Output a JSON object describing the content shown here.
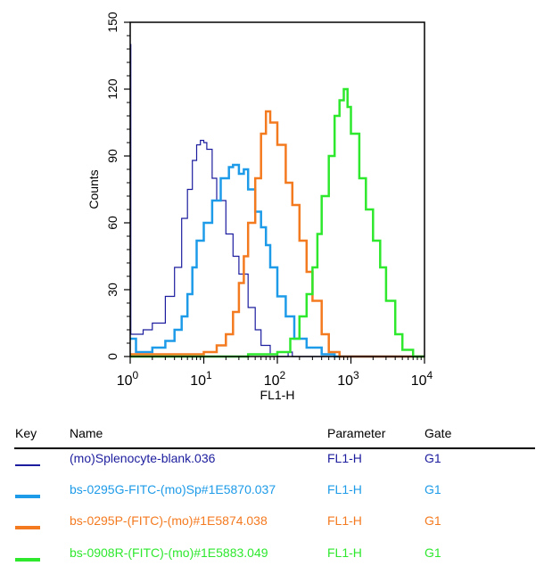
{
  "chart_data": {
    "type": "line",
    "title": "",
    "xlabel": "FL1-H",
    "ylabel": "Counts",
    "xscale": "log",
    "xlim": [
      1,
      10000
    ],
    "ylim": [
      0,
      150
    ],
    "xticks": [
      {
        "base": "10",
        "exp": "0"
      },
      {
        "base": "10",
        "exp": "1"
      },
      {
        "base": "10",
        "exp": "2"
      },
      {
        "base": "10",
        "exp": "3"
      },
      {
        "base": "10",
        "exp": "4"
      }
    ],
    "yticks": [
      "0",
      "30",
      "60",
      "90",
      "120",
      "150"
    ],
    "series": [
      {
        "name": "(mo)Splenocyte-blank.036",
        "color": "#1c1c9e",
        "width": 1.2,
        "points": [
          [
            1,
            140
          ],
          [
            1.02,
            10
          ],
          [
            1.5,
            12
          ],
          [
            2,
            15
          ],
          [
            3,
            27
          ],
          [
            4,
            40
          ],
          [
            5,
            62
          ],
          [
            6,
            75
          ],
          [
            7,
            88
          ],
          [
            8,
            95
          ],
          [
            9,
            97
          ],
          [
            10,
            96
          ],
          [
            11,
            93
          ],
          [
            13,
            80
          ],
          [
            15,
            70
          ],
          [
            20,
            55
          ],
          [
            25,
            45
          ],
          [
            30,
            37
          ],
          [
            40,
            22
          ],
          [
            50,
            12
          ],
          [
            60,
            5
          ],
          [
            80,
            1
          ],
          [
            100,
            0
          ],
          [
            140,
            2
          ],
          [
            160,
            0
          ],
          [
            10000,
            0
          ]
        ]
      },
      {
        "name": "bs-0295G-FITC-(mo)Sp#1E5870.037",
        "color": "#1e9be8",
        "width": 2.5,
        "points": [
          [
            1,
            8
          ],
          [
            1.2,
            2
          ],
          [
            2,
            4
          ],
          [
            3,
            7
          ],
          [
            4,
            12
          ],
          [
            5,
            18
          ],
          [
            6,
            28
          ],
          [
            7,
            40
          ],
          [
            8,
            52
          ],
          [
            10,
            60
          ],
          [
            13,
            70
          ],
          [
            17,
            80
          ],
          [
            22,
            85
          ],
          [
            25,
            86
          ],
          [
            30,
            82
          ],
          [
            35,
            84
          ],
          [
            40,
            75
          ],
          [
            50,
            65
          ],
          [
            60,
            58
          ],
          [
            70,
            50
          ],
          [
            80,
            40
          ],
          [
            100,
            27
          ],
          [
            130,
            18
          ],
          [
            170,
            8
          ],
          [
            250,
            4
          ],
          [
            400,
            1
          ],
          [
            600,
            0
          ],
          [
            10000,
            0
          ]
        ]
      },
      {
        "name": "bs-0295P-(FITC)-(mo)#1E5874.038",
        "color": "#f47a20",
        "width": 2.5,
        "points": [
          [
            1,
            1
          ],
          [
            7,
            1
          ],
          [
            10,
            2
          ],
          [
            15,
            5
          ],
          [
            20,
            10
          ],
          [
            25,
            20
          ],
          [
            30,
            33
          ],
          [
            35,
            45
          ],
          [
            40,
            60
          ],
          [
            50,
            80
          ],
          [
            60,
            100
          ],
          [
            70,
            110
          ],
          [
            80,
            105
          ],
          [
            100,
            95
          ],
          [
            130,
            78
          ],
          [
            160,
            68
          ],
          [
            200,
            52
          ],
          [
            250,
            38
          ],
          [
            300,
            25
          ],
          [
            400,
            10
          ],
          [
            500,
            2
          ],
          [
            700,
            0
          ],
          [
            10000,
            0
          ]
        ]
      },
      {
        "name": "bs-0908R-(FITC)-(mo)#1E5883.049",
        "color": "#2ee82e",
        "width": 2.5,
        "points": [
          [
            1,
            0
          ],
          [
            40,
            1
          ],
          [
            80,
            1
          ],
          [
            100,
            2
          ],
          [
            150,
            8
          ],
          [
            200,
            18
          ],
          [
            250,
            28
          ],
          [
            300,
            40
          ],
          [
            350,
            55
          ],
          [
            400,
            72
          ],
          [
            500,
            90
          ],
          [
            600,
            108
          ],
          [
            700,
            115
          ],
          [
            800,
            120
          ],
          [
            900,
            112
          ],
          [
            1000,
            100
          ],
          [
            1300,
            80
          ],
          [
            1600,
            66
          ],
          [
            2000,
            52
          ],
          [
            2500,
            40
          ],
          [
            3000,
            25
          ],
          [
            4000,
            10
          ],
          [
            5000,
            3
          ],
          [
            7000,
            0
          ],
          [
            10000,
            0
          ]
        ]
      }
    ]
  },
  "legend": {
    "headers": {
      "key": "Key",
      "name": "Name",
      "parameter": "Parameter",
      "gate": "Gate"
    },
    "rows": [
      {
        "name": "(mo)Splenocyte-blank.036",
        "parameter": "FL1-H",
        "gate": "G1",
        "color": "#1c1c9e"
      },
      {
        "name": "bs-0295G-FITC-(mo)Sp#1E5870.037",
        "parameter": "FL1-H",
        "gate": "G1",
        "color": "#1e9be8"
      },
      {
        "name": "bs-0295P-(FITC)-(mo)#1E5874.038",
        "parameter": "FL1-H",
        "gate": "G1",
        "color": "#f47a20"
      },
      {
        "name": "bs-0908R-(FITC)-(mo)#1E5883.049",
        "parameter": "FL1-H",
        "gate": "G1",
        "color": "#2ee82e"
      }
    ]
  }
}
